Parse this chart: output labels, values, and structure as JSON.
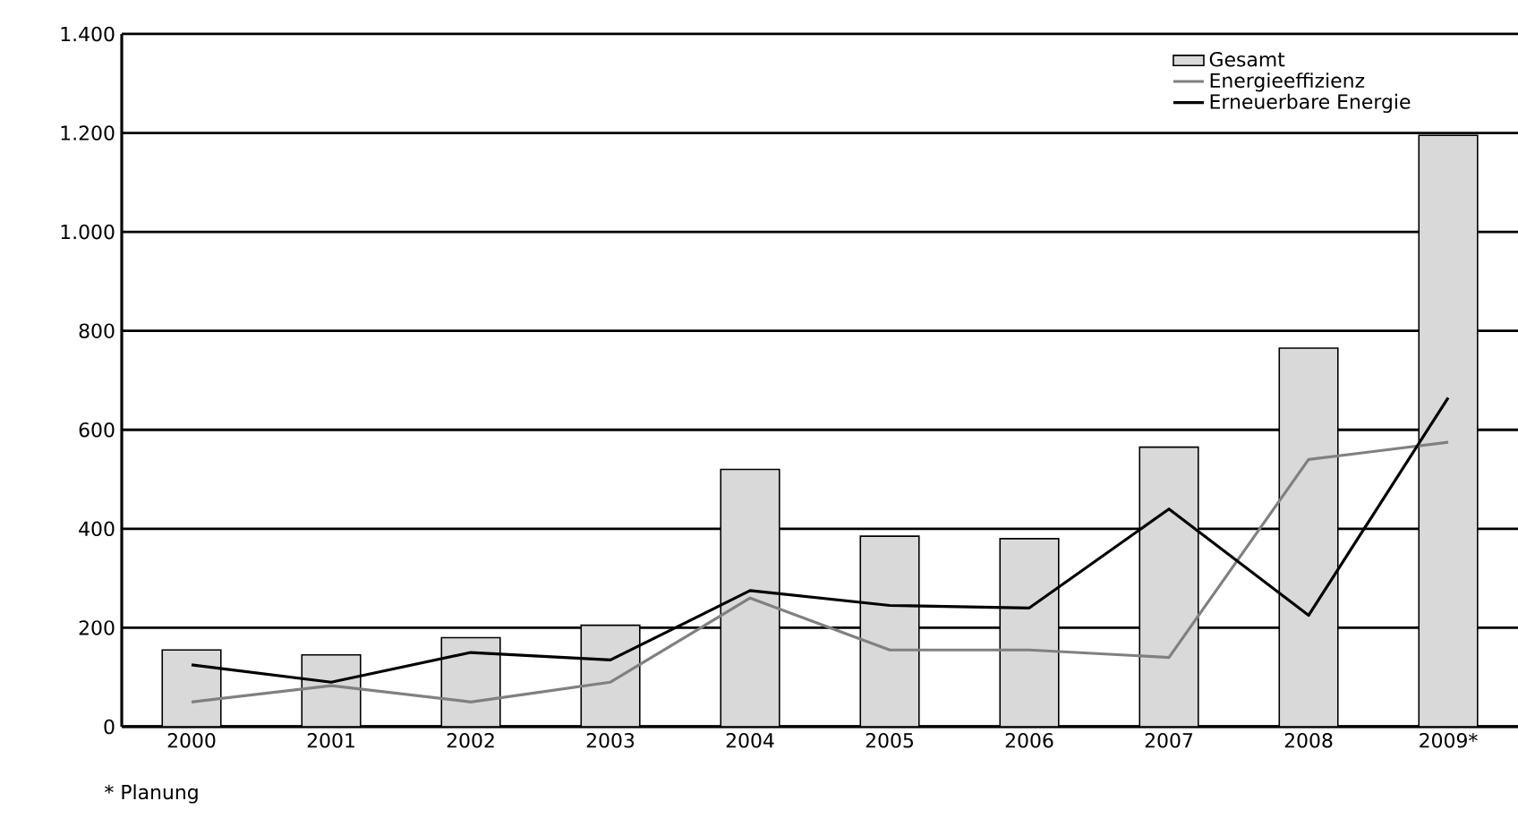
{
  "chart_data": {
    "type": "bar",
    "categories": [
      "2000",
      "2001",
      "2002",
      "2003",
      "2004",
      "2005",
      "2006",
      "2007",
      "2008",
      "2009*"
    ],
    "series": [
      {
        "name": "Gesamt",
        "color": "#d9d9d9",
        "values": [
          155,
          145,
          180,
          205,
          520,
          385,
          380,
          565,
          765,
          1195
        ]
      },
      {
        "name": "Energieeffizienz",
        "type": "line",
        "color": "#808080",
        "values": [
          50,
          83,
          50,
          90,
          260,
          155,
          155,
          140,
          540,
          575
        ]
      },
      {
        "name": "Erneuerbare Energie",
        "type": "line",
        "color": "#000000",
        "values": [
          125,
          90,
          150,
          135,
          275,
          245,
          240,
          440,
          225,
          665
        ]
      }
    ],
    "ylim": [
      0,
      1400
    ],
    "yticks": [
      {
        "value": 0,
        "label": "0"
      },
      {
        "value": 200,
        "label": "200"
      },
      {
        "value": 400,
        "label": "400"
      },
      {
        "value": 600,
        "label": "600"
      },
      {
        "value": 800,
        "label": "800"
      },
      {
        "value": 1000,
        "label": "1.000"
      },
      {
        "value": 1200,
        "label": "1.200"
      },
      {
        "value": 1400,
        "label": "1.400"
      }
    ],
    "grid": "y",
    "legend": "top right",
    "marker": "none",
    "line_style": "solid",
    "annotations": [
      "* Planung"
    ]
  }
}
